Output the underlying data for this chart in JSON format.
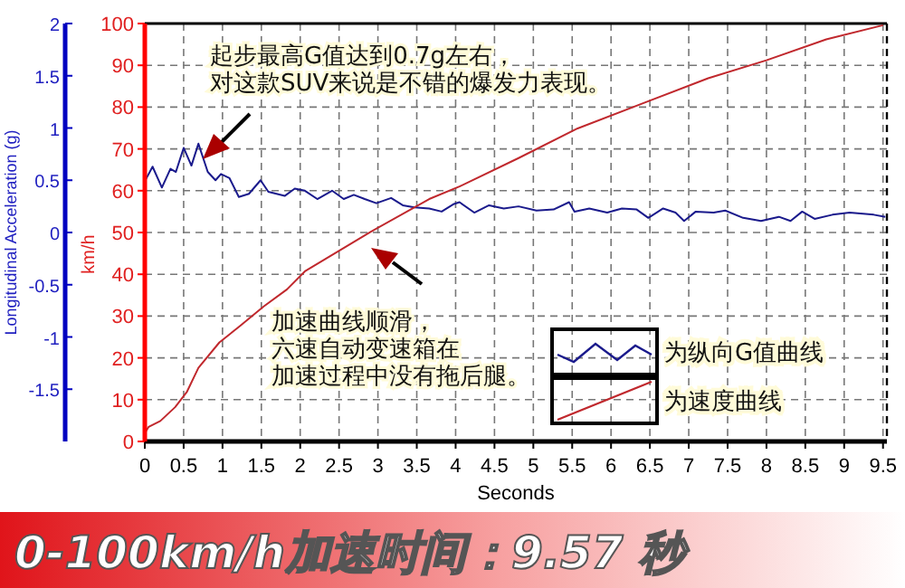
{
  "chart_data": {
    "type": "line",
    "title": "0-100km/h加速时间：9.57 秒",
    "xlabel": "Seconds",
    "ylabel": "Longitudinal Acceleration (g)",
    "y2label": "km/h",
    "xlim": [
      0,
      9.55
    ],
    "xticks": [
      0,
      0.5,
      1,
      1.5,
      2,
      2.5,
      3,
      3.5,
      4,
      4.5,
      5,
      5.5,
      6,
      6.5,
      7,
      7.5,
      8,
      8.5,
      9,
      9.5
    ],
    "ylim": [
      -2,
      2
    ],
    "yticks": [
      -1.5,
      -1,
      -0.5,
      0,
      0.5,
      1,
      1.5,
      2
    ],
    "y2lim": [
      0,
      100
    ],
    "y2ticks": [
      0,
      10,
      20,
      30,
      40,
      50,
      60,
      70,
      80,
      90,
      100
    ],
    "grid": true,
    "legend": "bottom right",
    "annotations": [
      "起步最高G值达到0.7g左右，对这款SUV来说是不错的爆发力表现。",
      "加速曲线顺滑，六速自动变速箱在加速过程中没有拖后腿。"
    ],
    "series": [
      {
        "name": "为纵向G值曲线",
        "color": "#1a1a8c",
        "x": [
          0,
          0.1,
          0.22,
          0.33,
          0.4,
          0.5,
          0.6,
          0.69,
          0.81,
          0.91,
          0.98,
          1.09,
          1.21,
          1.34,
          1.49,
          1.59,
          1.8,
          1.93,
          2.06,
          2.22,
          2.41,
          2.56,
          2.69,
          2.83,
          2.98,
          3.17,
          3.32,
          3.47,
          3.66,
          3.82,
          3.97,
          4.05,
          4.24,
          4.43,
          4.62,
          4.81,
          5.04,
          5.26,
          5.46,
          5.53,
          5.72,
          5.95,
          6.14,
          6.33,
          6.48,
          6.67,
          6.83,
          6.94,
          7.09,
          7.32,
          7.47,
          7.7,
          7.93,
          8.16,
          8.31,
          8.46,
          8.62,
          8.85,
          9.07,
          9.38,
          9.53
        ],
        "values": [
          0.49,
          0.63,
          0.43,
          0.61,
          0.58,
          0.81,
          0.64,
          0.85,
          0.58,
          0.5,
          0.56,
          0.52,
          0.34,
          0.37,
          0.5,
          0.39,
          0.35,
          0.42,
          0.4,
          0.32,
          0.4,
          0.32,
          0.36,
          0.32,
          0.28,
          0.33,
          0.26,
          0.24,
          0.23,
          0.2,
          0.27,
          0.29,
          0.19,
          0.26,
          0.23,
          0.25,
          0.21,
          0.22,
          0.29,
          0.2,
          0.23,
          0.19,
          0.23,
          0.22,
          0.14,
          0.23,
          0.19,
          0.11,
          0.2,
          0.19,
          0.21,
          0.14,
          0.11,
          0.15,
          0.11,
          0.2,
          0.13,
          0.17,
          0.19,
          0.17,
          0.15
        ]
      },
      {
        "name": "为速度曲线",
        "color": "#c0282d",
        "axis": "y2",
        "x": [
          0,
          0.05,
          0.2,
          0.39,
          0.54,
          0.69,
          0.96,
          1.23,
          1.53,
          1.83,
          2.06,
          2.9,
          3.66,
          4.05,
          4.81,
          5.57,
          6.48,
          7.25,
          8,
          8.77,
          9.5
        ],
        "values": [
          2,
          3.5,
          4.9,
          8.2,
          11.8,
          17.6,
          23.7,
          27.7,
          32.3,
          36.4,
          40.7,
          50.1,
          58,
          61,
          67.8,
          74.9,
          81.4,
          86.9,
          91.2,
          96.2,
          99.6
        ]
      }
    ]
  }
}
